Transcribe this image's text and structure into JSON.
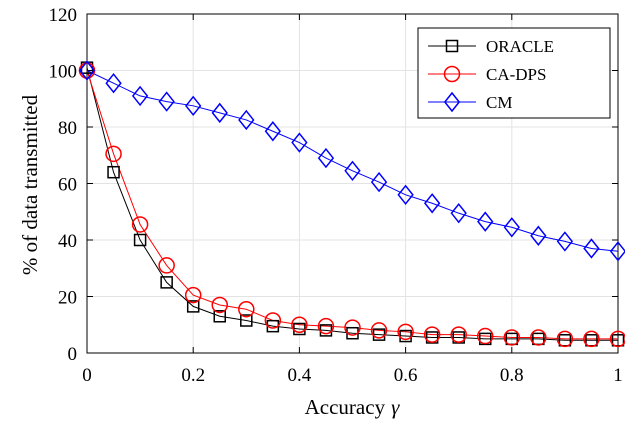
{
  "chart_data": {
    "type": "line",
    "xlabel": "Accuracy",
    "xlabel_symbol": "γ",
    "ylabel": "% of data transmitted",
    "xlim": [
      0,
      1
    ],
    "ylim": [
      0,
      120
    ],
    "grid": true,
    "legend_position": "top-right",
    "x_ticks": [
      "0",
      "0.2",
      "0.4",
      "0.6",
      "0.8",
      "1"
    ],
    "y_ticks": [
      "0",
      "20",
      "40",
      "60",
      "80",
      "100",
      "120"
    ],
    "x": [
      0,
      0.05,
      0.1,
      0.15,
      0.2,
      0.25,
      0.3,
      0.35,
      0.4,
      0.45,
      0.5,
      0.55,
      0.6,
      0.65,
      0.7,
      0.75,
      0.8,
      0.85,
      0.9,
      0.95,
      1.0
    ],
    "series": [
      {
        "name": "ORACLE",
        "color": "#000000",
        "marker": "square",
        "values": [
          101,
          64,
          40,
          25,
          16.5,
          13,
          11.5,
          9.5,
          8.5,
          8,
          7,
          6.5,
          6,
          5.5,
          5.5,
          5,
          5,
          5,
          4.5,
          4.5,
          4.5
        ]
      },
      {
        "name": "CA-DPS",
        "color": "#ff0000",
        "marker": "circle",
        "values": [
          100,
          70.5,
          45.5,
          31,
          20.5,
          17,
          15.5,
          11.5,
          10,
          9.5,
          9,
          8,
          7.5,
          6.5,
          6.5,
          6,
          5.5,
          5.5,
          5,
          5,
          5
        ]
      },
      {
        "name": "CM",
        "color": "#0000ff",
        "marker": "diamond",
        "values": [
          100,
          95.5,
          91,
          89,
          87.5,
          85,
          82.5,
          78.5,
          74.5,
          69,
          64.5,
          60.5,
          56,
          53,
          49.5,
          46.5,
          44.5,
          41.5,
          39.5,
          37,
          36
        ]
      }
    ]
  }
}
